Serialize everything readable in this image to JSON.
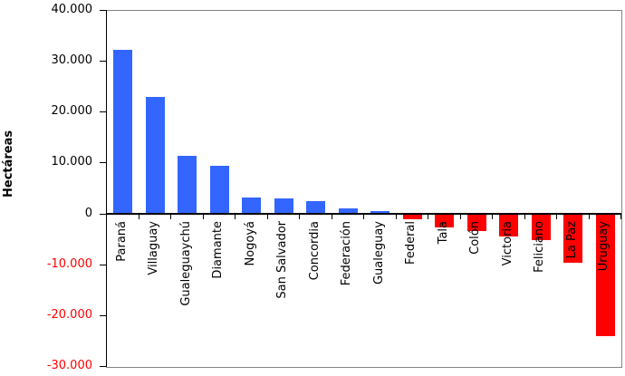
{
  "chart_data": {
    "type": "bar",
    "title": "",
    "xlabel": "",
    "ylabel": "Hectáreas",
    "categories": [
      "Paraná",
      "Villaguay",
      "Gualeguaychú",
      "Diamante",
      "Nogoyá",
      "San Salvador",
      "Concordia",
      "Federación",
      "Gualeguay",
      "Federal",
      "Tala",
      "Colón",
      "Victoria",
      "Feliciano",
      "La Paz",
      "Uruguay"
    ],
    "values": [
      32400,
      23100,
      11500,
      9600,
      3300,
      3200,
      2600,
      1100,
      600,
      -1000,
      -2500,
      -3200,
      -4400,
      -5000,
      -9500,
      -24000
    ],
    "ylim": [
      -30000,
      40000
    ],
    "grid": "off",
    "legend": "none",
    "y_ticks": [
      {
        "label": "40.000",
        "value": 40000
      },
      {
        "label": "30.000",
        "value": 30000
      },
      {
        "label": "20.000",
        "value": 20000
      },
      {
        "label": "10.000",
        "value": 10000
      },
      {
        "label": "0",
        "value": 0
      },
      {
        "label": "-10.000",
        "value": -10000
      },
      {
        "label": "-20.000",
        "value": -20000
      },
      {
        "label": "-30.000",
        "value": -30000
      }
    ],
    "colors": {
      "positive_bar": "#3366FF",
      "negative_bar": "#FF0000",
      "positive_tick_label": "#000000",
      "negative_tick_label": "#FF0000",
      "axis_line": "#000000",
      "plot_frame": "#848484"
    }
  }
}
